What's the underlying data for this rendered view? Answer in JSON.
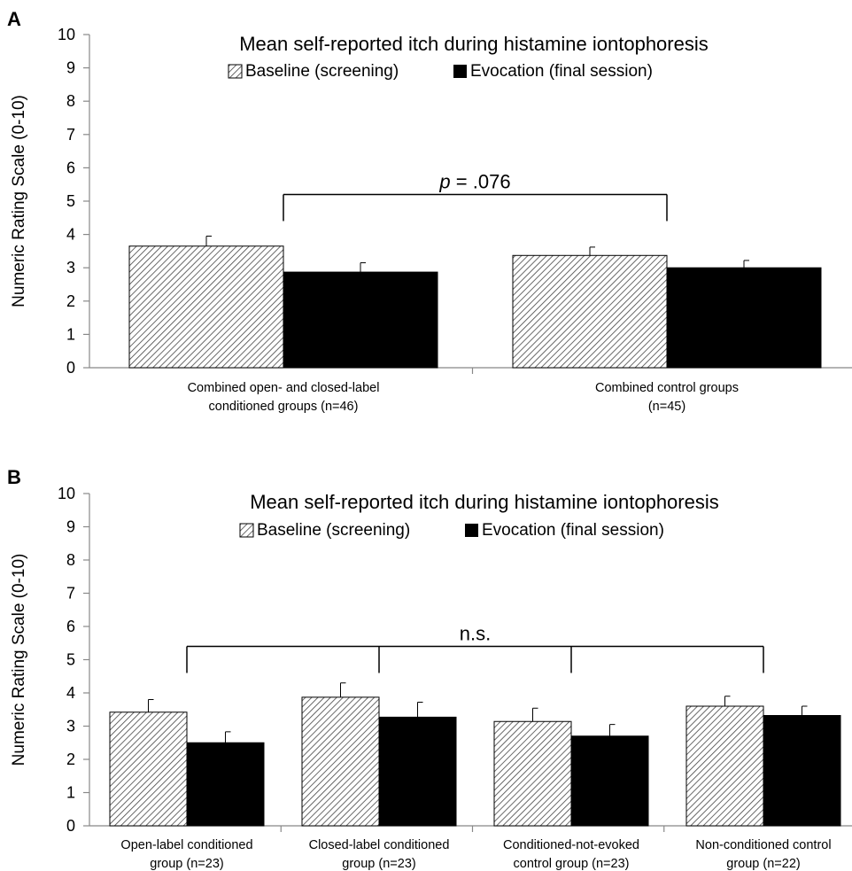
{
  "chart_data": [
    {
      "panel": "A",
      "type": "bar",
      "title": "Mean self-reported itch during histamine iontophoresis",
      "ylabel": "Numeric Rating Scale (0-10)",
      "xlabel": "",
      "ylim": [
        0,
        10
      ],
      "yticks": [
        "0",
        "1",
        "2",
        "3",
        "4",
        "5",
        "6",
        "7",
        "8",
        "9",
        "10"
      ],
      "grid": false,
      "legend_position": "top-center",
      "categories": [
        [
          "Combined open- and closed-label",
          "conditioned groups (n=46)"
        ],
        [
          "Combined control groups",
          "(n=45)"
        ]
      ],
      "series": [
        {
          "name": "Baseline (screening)",
          "pattern": "hatched",
          "values": [
            3.65,
            3.37
          ],
          "errors": [
            0.3,
            0.25
          ]
        },
        {
          "name": "Evocation (final session)",
          "pattern": "solid",
          "color": "#000000",
          "values": [
            2.87,
            3.0
          ],
          "errors": [
            0.28,
            0.22
          ]
        }
      ],
      "annotation": {
        "italic": "p",
        "text": " = .076",
        "connects_categories": [
          0,
          1
        ],
        "level": 5.2
      }
    },
    {
      "panel": "B",
      "type": "bar",
      "title": "Mean self-reported itch during histamine iontophoresis",
      "ylabel": "Numeric Rating Scale (0-10)",
      "xlabel": "",
      "ylim": [
        0,
        10
      ],
      "yticks": [
        "0",
        "1",
        "2",
        "3",
        "4",
        "5",
        "6",
        "7",
        "8",
        "9",
        "10"
      ],
      "grid": false,
      "legend_position": "top-center",
      "categories": [
        [
          "Open-label conditioned",
          "group (n=23)"
        ],
        [
          "Closed-label conditioned",
          "group (n=23)"
        ],
        [
          "Conditioned-not-evoked",
          "control group (n=23)"
        ],
        [
          "Non-conditioned control",
          "group (n=22)"
        ]
      ],
      "series": [
        {
          "name": "Baseline (screening)",
          "pattern": "hatched",
          "values": [
            3.42,
            3.87,
            3.14,
            3.6
          ],
          "errors": [
            0.38,
            0.43,
            0.4,
            0.3
          ]
        },
        {
          "name": "Evocation (final session)",
          "pattern": "solid",
          "color": "#000000",
          "values": [
            2.5,
            3.27,
            2.7,
            3.32
          ],
          "errors": [
            0.33,
            0.45,
            0.35,
            0.28
          ]
        }
      ],
      "annotation": {
        "italic": "",
        "text": "n.s.",
        "connects_categories": [
          0,
          1,
          2,
          3
        ],
        "level": 5.4
      }
    }
  ]
}
